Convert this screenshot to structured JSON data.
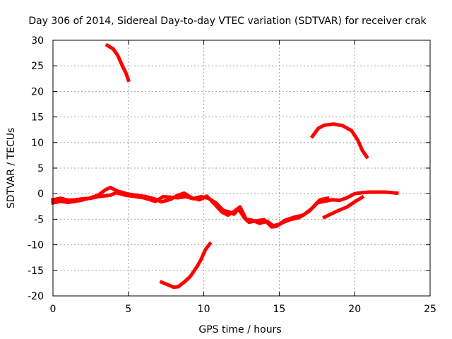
{
  "chart_data": {
    "type": "line",
    "title": "Day 306 of 2014, Sidereal Day-to-day VTEC variation (SDTVAR) for receiver crak",
    "xlabel": "GPS time / hours",
    "ylabel": "SDTVAR / TECUs",
    "xlim": [
      0,
      25
    ],
    "ylim": [
      -20,
      30
    ],
    "x_ticks": [
      0,
      5,
      10,
      15,
      20,
      25
    ],
    "y_ticks": [
      -20,
      -15,
      -10,
      -5,
      0,
      5,
      10,
      15,
      20,
      25,
      30
    ],
    "grid": true,
    "legend": "none",
    "series_color": "#ff0000",
    "series": [
      {
        "name": "track-high-early",
        "x": [
          3.6,
          4.0,
          4.3,
          4.6,
          4.85,
          5.0
        ],
        "y": [
          29,
          28.3,
          27.0,
          25.0,
          23.5,
          22.2
        ]
      },
      {
        "name": "track-low-morning",
        "x": [
          7.2,
          7.6,
          8.0,
          8.3,
          8.7,
          9.1,
          9.5,
          9.8,
          10.1,
          10.4
        ],
        "y": [
          -17.3,
          -17.8,
          -18.3,
          -18.2,
          -17.3,
          -16.2,
          -14.5,
          -13.0,
          -11.0,
          -9.8
        ]
      },
      {
        "name": "track-high-evening",
        "x": [
          17.2,
          17.6,
          18.0,
          18.6,
          19.2,
          19.8,
          20.2,
          20.5,
          20.8
        ],
        "y": [
          11.2,
          12.8,
          13.4,
          13.6,
          13.3,
          12.3,
          10.5,
          8.5,
          7.2
        ]
      },
      {
        "name": "cluster-main-1",
        "x": [
          0.0,
          0.5,
          1.0,
          1.5,
          2.0,
          2.5,
          3.0,
          3.5,
          3.8,
          4.2,
          4.8,
          5.3,
          6.0,
          6.8,
          7.3,
          7.8,
          8.3,
          8.8,
          9.3,
          9.8,
          10.3,
          10.8,
          11.3,
          11.7,
          12.0,
          12.3,
          12.7,
          13.0,
          13.5,
          14.0,
          14.5,
          14.8,
          15.2,
          15.7,
          16.3,
          17.0,
          17.5,
          18.0,
          18.5,
          19.0,
          19.5,
          20.0,
          20.5,
          21.0,
          21.5,
          22.0,
          22.5,
          22.8
        ],
        "y": [
          -1.2,
          -0.9,
          -1.3,
          -1.2,
          -1.0,
          -0.9,
          -0.6,
          -0.4,
          -0.3,
          0.2,
          -0.3,
          -0.5,
          -0.8,
          -1.5,
          -0.6,
          -0.7,
          -0.8,
          -0.6,
          -1.0,
          -0.6,
          -0.9,
          -1.8,
          -3.3,
          -3.6,
          -4.0,
          -3.0,
          -4.8,
          -5.6,
          -5.3,
          -5.1,
          -6.5,
          -6.4,
          -5.7,
          -5.1,
          -4.7,
          -3.4,
          -1.8,
          -1.5,
          -1.2,
          -1.3,
          -0.8,
          0.0,
          0.2,
          0.3,
          0.3,
          0.3,
          0.2,
          0.1
        ]
      },
      {
        "name": "cluster-main-2",
        "x": [
          0.0,
          0.5,
          1.0,
          1.5,
          2.0,
          2.5,
          3.0,
          3.5,
          3.8,
          4.3,
          5.0,
          5.5,
          6.2,
          6.8,
          7.2,
          7.8,
          8.2,
          8.7,
          9.2,
          9.7,
          10.2,
          10.7,
          11.2,
          11.6,
          12.0,
          12.4,
          12.8,
          13.2,
          13.7,
          14.2,
          14.6,
          15.0,
          15.4,
          16.0,
          16.6,
          17.2,
          17.7,
          18.2
        ],
        "y": [
          -1.8,
          -1.5,
          -1.7,
          -1.5,
          -1.2,
          -0.8,
          -0.3,
          0.8,
          1.2,
          0.5,
          -0.1,
          -0.3,
          -0.6,
          -1.1,
          -1.6,
          -1.1,
          -0.4,
          0.1,
          -0.8,
          -1.2,
          -0.5,
          -2.0,
          -3.6,
          -4.2,
          -3.5,
          -2.6,
          -5.0,
          -5.2,
          -5.8,
          -5.4,
          -6.3,
          -6.0,
          -5.2,
          -4.6,
          -4.2,
          -2.8,
          -1.2,
          -0.9
        ]
      },
      {
        "name": "cluster-evening-low",
        "x": [
          18.0,
          18.5,
          19.0,
          19.5,
          20.0,
          20.5
        ],
        "y": [
          -4.6,
          -3.9,
          -3.2,
          -2.6,
          -1.6,
          -0.7
        ]
      }
    ]
  }
}
